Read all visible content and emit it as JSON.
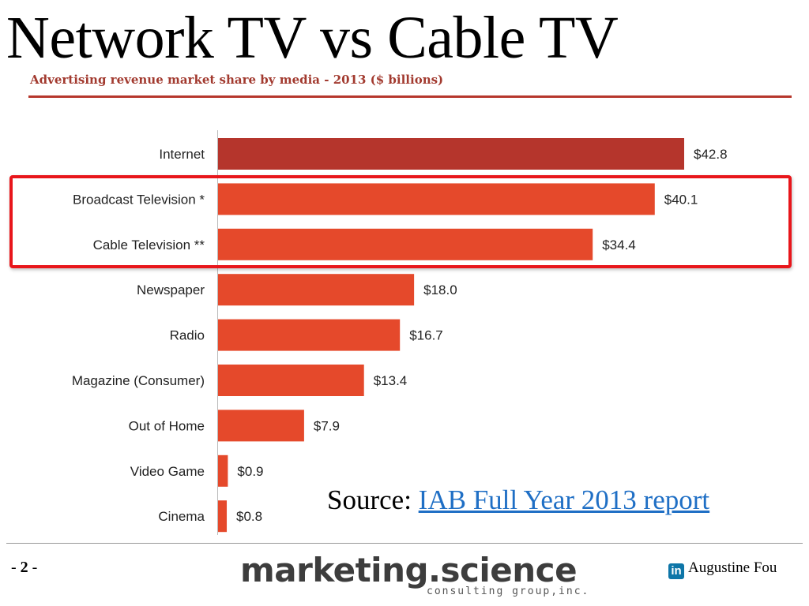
{
  "slide": {
    "title": "Network TV vs Cable TV",
    "page_number": "2",
    "page_prefix": "- ",
    "page_suffix": " -",
    "source_prefix": "Source: ",
    "source_link": "IAB Full Year 2013 report",
    "brand_main": "marketing.science",
    "brand_sub": "consulting group,inc.",
    "author": "Augustine Fou",
    "author_icon": "linkedin-icon",
    "author_icon_text": "in"
  },
  "chart_data": {
    "type": "bar",
    "orientation": "horizontal",
    "title": "Advertising revenue market share by media - 2013 ($ billions)",
    "categories": [
      "Internet",
      "Broadcast Television *",
      "Cable Television **",
      "Newspaper",
      "Radio",
      "Magazine (Consumer)",
      "Out of Home",
      "Video Game",
      "Cinema"
    ],
    "values": [
      42.8,
      40.1,
      34.4,
      18.0,
      16.7,
      13.4,
      7.9,
      0.9,
      0.8
    ],
    "value_labels": [
      "$42.8",
      "$40.1",
      "$34.4",
      "$18.0",
      "$16.7",
      "$13.4",
      "$7.9",
      "$0.9",
      "$0.8"
    ],
    "highlighted": [
      "Broadcast Television *",
      "Cable Television **"
    ],
    "xlim": [
      0,
      42.8
    ],
    "grid": false,
    "colors": {
      "first_bar": "#b5352c",
      "bars": "#e5492b",
      "highlight_border": "#e8161b"
    }
  }
}
